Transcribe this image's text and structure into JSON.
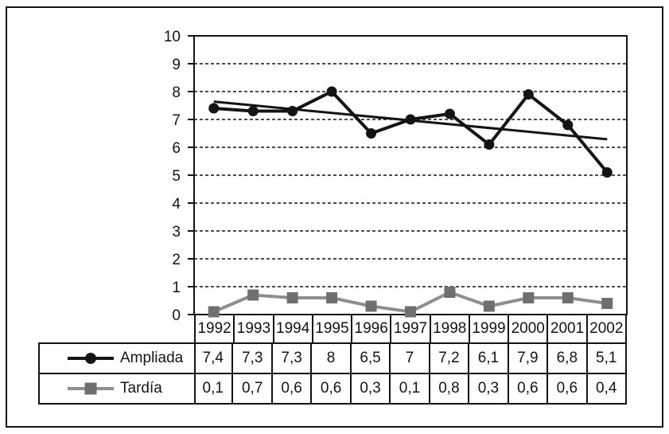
{
  "chart_data": {
    "type": "line",
    "x": [
      1992,
      1993,
      1994,
      1995,
      1996,
      1997,
      1998,
      1999,
      2000,
      2001,
      2002
    ],
    "series": [
      {
        "name": "Ampliada",
        "marker": "circle",
        "color": "#141414",
        "values": [
          7.4,
          7.3,
          7.3,
          8,
          6.5,
          7,
          7.2,
          6.1,
          7.9,
          6.8,
          5.1
        ],
        "labels": [
          "7,4",
          "7,3",
          "7,3",
          "8",
          "6,5",
          "7",
          "7,2",
          "6,1",
          "7,9",
          "6,8",
          "5,1"
        ]
      },
      {
        "name": "Tardía",
        "marker": "square",
        "color": "#6f6f6f",
        "line_color": "#8e8e8e",
        "values": [
          0.1,
          0.7,
          0.6,
          0.6,
          0.3,
          0.1,
          0.8,
          0.3,
          0.6,
          0.6,
          0.4
        ],
        "labels": [
          "0,1",
          "0,7",
          "0,6",
          "0,6",
          "0,3",
          "0,1",
          "0,8",
          "0,3",
          "0,6",
          "0,6",
          "0,4"
        ]
      }
    ],
    "trend_line": {
      "series": "Ampliada",
      "start_value": 7.64,
      "end_value": 6.29,
      "color": "#141414"
    },
    "y_ticks": [
      0,
      1,
      2,
      3,
      4,
      5,
      6,
      7,
      8,
      9,
      10
    ],
    "ylim": [
      0,
      10
    ],
    "grid": "horizontal dashed at 1-9",
    "legend_position": "table-left",
    "title": "",
    "xlabel": "",
    "ylabel": ""
  }
}
